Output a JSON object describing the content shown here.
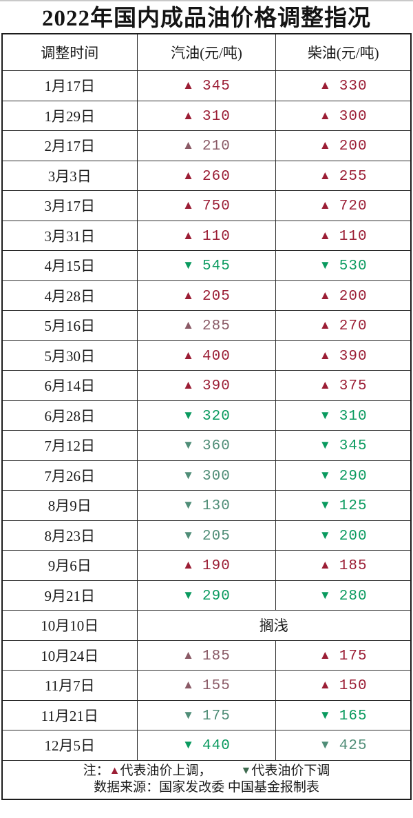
{
  "title": "2022年国内成品油价格调整指况",
  "icons": {
    "up": "▲",
    "down": "▼"
  },
  "colors": {
    "up": "#9B1E35",
    "up_muted": "#8A5A66",
    "down": "#0A9A5F",
    "down_muted": "#4F8D77",
    "legend_up": "#9B1E35",
    "legend_down": "#3F6B50"
  },
  "table": {
    "headers": [
      "调整时间",
      "汽油(元/吨)",
      "柴油(元/吨)"
    ],
    "rows": [
      {
        "date": "1月17日",
        "gas": {
          "dir": "up",
          "value": "345",
          "tone": "up"
        },
        "diesel": {
          "dir": "up",
          "value": "330",
          "tone": "up"
        }
      },
      {
        "date": "1月29日",
        "gas": {
          "dir": "up",
          "value": "310",
          "tone": "up"
        },
        "diesel": {
          "dir": "up",
          "value": "300",
          "tone": "up"
        }
      },
      {
        "date": "2月17日",
        "gas": {
          "dir": "up",
          "value": "210",
          "tone": "up_muted"
        },
        "diesel": {
          "dir": "up",
          "value": "200",
          "tone": "up"
        }
      },
      {
        "date": "3月3日",
        "gas": {
          "dir": "up",
          "value": "260",
          "tone": "up"
        },
        "diesel": {
          "dir": "up",
          "value": "255",
          "tone": "up"
        }
      },
      {
        "date": "3月17日",
        "gas": {
          "dir": "up",
          "value": "750",
          "tone": "up"
        },
        "diesel": {
          "dir": "up",
          "value": "720",
          "tone": "up"
        }
      },
      {
        "date": "3月31日",
        "gas": {
          "dir": "up",
          "value": "110",
          "tone": "up"
        },
        "diesel": {
          "dir": "up",
          "value": "110",
          "tone": "up"
        }
      },
      {
        "date": "4月15日",
        "gas": {
          "dir": "down",
          "value": "545",
          "tone": "down"
        },
        "diesel": {
          "dir": "down",
          "value": "530",
          "tone": "down"
        }
      },
      {
        "date": "4月28日",
        "gas": {
          "dir": "up",
          "value": "205",
          "tone": "up"
        },
        "diesel": {
          "dir": "up",
          "value": "200",
          "tone": "up"
        }
      },
      {
        "date": "5月16日",
        "gas": {
          "dir": "up",
          "value": "285",
          "tone": "up_muted"
        },
        "diesel": {
          "dir": "up",
          "value": "270",
          "tone": "up"
        }
      },
      {
        "date": "5月30日",
        "gas": {
          "dir": "up",
          "value": "400",
          "tone": "up"
        },
        "diesel": {
          "dir": "up",
          "value": "390",
          "tone": "up"
        }
      },
      {
        "date": "6月14日",
        "gas": {
          "dir": "up",
          "value": "390",
          "tone": "up"
        },
        "diesel": {
          "dir": "up",
          "value": "375",
          "tone": "up"
        }
      },
      {
        "date": "6月28日",
        "gas": {
          "dir": "down",
          "value": "320",
          "tone": "down"
        },
        "diesel": {
          "dir": "down",
          "value": "310",
          "tone": "down"
        }
      },
      {
        "date": "7月12日",
        "gas": {
          "dir": "down",
          "value": "360",
          "tone": "down_muted"
        },
        "diesel": {
          "dir": "down",
          "value": "345",
          "tone": "down"
        }
      },
      {
        "date": "7月26日",
        "gas": {
          "dir": "down",
          "value": "300",
          "tone": "down_muted"
        },
        "diesel": {
          "dir": "down",
          "value": "290",
          "tone": "down"
        }
      },
      {
        "date": "8月9日",
        "gas": {
          "dir": "down",
          "value": "130",
          "tone": "down_muted"
        },
        "diesel": {
          "dir": "down",
          "value": "125",
          "tone": "down"
        }
      },
      {
        "date": "8月23日",
        "gas": {
          "dir": "down",
          "value": "205",
          "tone": "down_muted"
        },
        "diesel": {
          "dir": "down",
          "value": "200",
          "tone": "down"
        }
      },
      {
        "date": "9月6日",
        "gas": {
          "dir": "up",
          "value": "190",
          "tone": "up"
        },
        "diesel": {
          "dir": "up",
          "value": "185",
          "tone": "up"
        }
      },
      {
        "date": "9月21日",
        "gas": {
          "dir": "down",
          "value": "290",
          "tone": "down"
        },
        "diesel": {
          "dir": "down",
          "value": "280",
          "tone": "down"
        }
      },
      {
        "date": "10月10日",
        "merged": "搁浅"
      },
      {
        "date": "10月24日",
        "gas": {
          "dir": "up",
          "value": "185",
          "tone": "up_muted"
        },
        "diesel": {
          "dir": "up",
          "value": "175",
          "tone": "up"
        }
      },
      {
        "date": "11月7日",
        "gas": {
          "dir": "up",
          "value": "155",
          "tone": "up_muted"
        },
        "diesel": {
          "dir": "up",
          "value": "150",
          "tone": "up"
        }
      },
      {
        "date": "11月21日",
        "gas": {
          "dir": "down",
          "value": "175",
          "tone": "down_muted"
        },
        "diesel": {
          "dir": "down",
          "value": "165",
          "tone": "down"
        }
      },
      {
        "date": "12月5日",
        "gas": {
          "dir": "down",
          "value": "440",
          "tone": "down"
        },
        "diesel": {
          "dir": "down",
          "value": "425",
          "tone": "down_muted"
        }
      }
    ]
  },
  "footer": {
    "note_prefix": "注：",
    "up_text": "代表油价上调，",
    "down_text": "代表油价下调",
    "source": "数据来源：国家发改委 中国基金报制表"
  },
  "chart_data": {
    "type": "table",
    "title": "2022年国内成品油价格调整指况",
    "columns": [
      "调整时间",
      "汽油(元/吨)",
      "柴油(元/吨)"
    ],
    "rows": [
      [
        "1月17日",
        "+345",
        "+330"
      ],
      [
        "1月29日",
        "+310",
        "+300"
      ],
      [
        "2月17日",
        "+210",
        "+200"
      ],
      [
        "3月3日",
        "+260",
        "+255"
      ],
      [
        "3月17日",
        "+750",
        "+720"
      ],
      [
        "3月31日",
        "+110",
        "+110"
      ],
      [
        "4月15日",
        "-545",
        "-530"
      ],
      [
        "4月28日",
        "+205",
        "+200"
      ],
      [
        "5月16日",
        "+285",
        "+270"
      ],
      [
        "5月30日",
        "+400",
        "+390"
      ],
      [
        "6月14日",
        "+390",
        "+375"
      ],
      [
        "6月28日",
        "-320",
        "-310"
      ],
      [
        "7月12日",
        "-360",
        "-345"
      ],
      [
        "7月26日",
        "-300",
        "-290"
      ],
      [
        "8月9日",
        "-130",
        "-125"
      ],
      [
        "8月23日",
        "-205",
        "-200"
      ],
      [
        "9月6日",
        "+190",
        "+185"
      ],
      [
        "9月21日",
        "-290",
        "-280"
      ],
      [
        "10月10日",
        "搁浅",
        "搁浅"
      ],
      [
        "10月24日",
        "+185",
        "+175"
      ],
      [
        "11月7日",
        "+155",
        "+150"
      ],
      [
        "11月21日",
        "-175",
        "-165"
      ],
      [
        "12月5日",
        "-440",
        "-425"
      ]
    ],
    "legend": "▲代表油价上调，▼代表油价下调",
    "source": "数据来源：国家发改委 中国基金报制表"
  }
}
